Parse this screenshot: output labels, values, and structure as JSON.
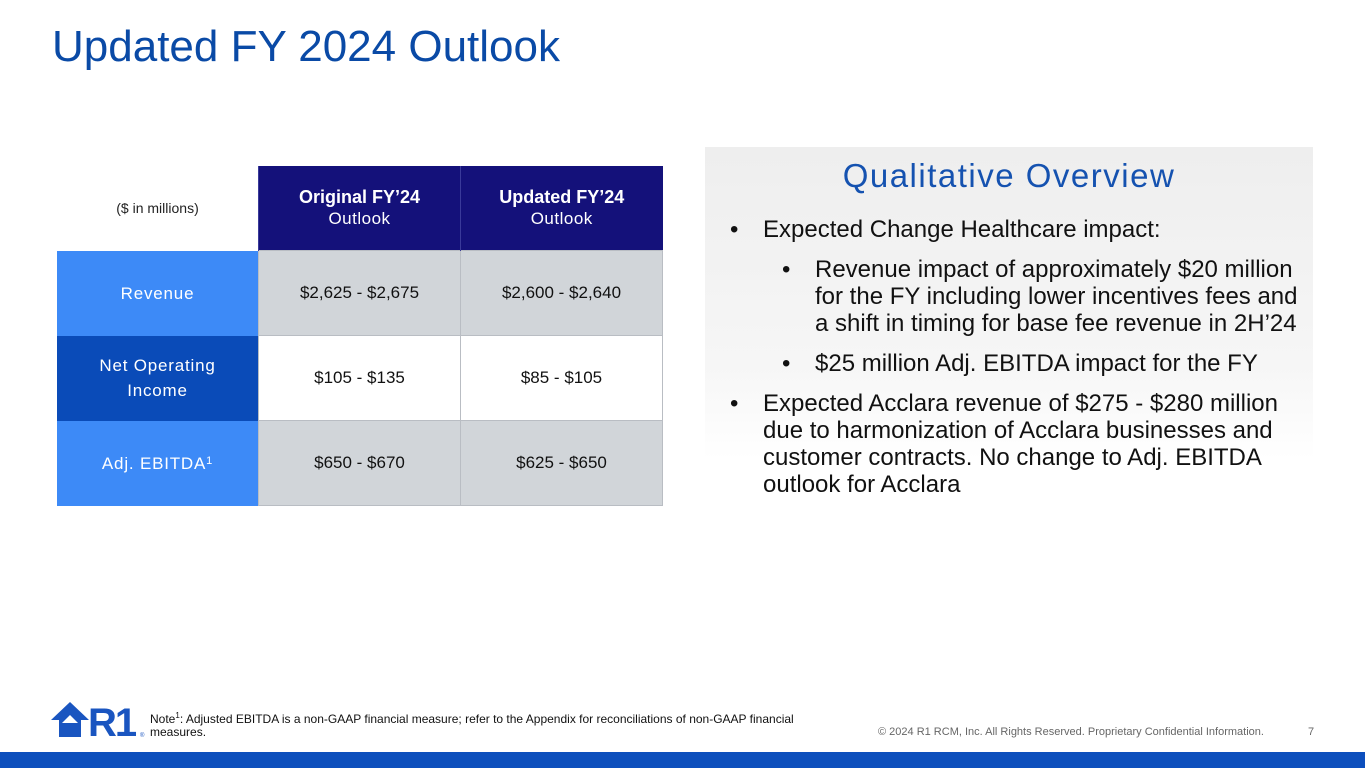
{
  "slide": {
    "title": "Updated FY 2024 Outlook"
  },
  "table": {
    "corner_label": "($ in millions)",
    "columns": [
      {
        "bold": "Original FY’24",
        "light": "Outlook"
      },
      {
        "bold": "Updated FY’24",
        "light": "Outlook"
      }
    ],
    "rows": [
      {
        "label": "Revenue",
        "original": "$2,625 - $2,675",
        "updated": "$2,600 - $2,640"
      },
      {
        "label_line1": "Net Operating",
        "label_line2": "Income",
        "original": "$105 - $135",
        "updated": "$85 - $105"
      },
      {
        "label": "Adj. EBITDA",
        "label_sup": "1",
        "original": "$650 - $670",
        "updated": "$625 - $650"
      }
    ]
  },
  "qualitative": {
    "title": "Qualitative Overview",
    "bullets": [
      "Expected Change Healthcare impact:",
      "Revenue impact of approximately $20 million for the FY including lower incentives fees and a shift in timing for base fee revenue in 2H’24",
      "$25 million Adj. EBITDA impact for the FY",
      "Expected Acclara revenue of $275 - $280 million due to harmonization of Acclara businesses and customer contracts.  No change to Adj. EBITDA outlook for Acclara"
    ],
    "bullet_glyph": "•"
  },
  "footer": {
    "note_prefix": "Note",
    "note_sup": "1",
    "note_text": ": Adjusted EBITDA is a non-GAAP financial measure; refer to the Appendix for reconciliations of non-GAAP financial measures.",
    "copyright": "© 2024 R1 RCM, Inc. All Rights Reserved. Proprietary Confidential Information.",
    "page_number": "7",
    "logo_text": "R1",
    "logo_mark": "®"
  },
  "colors": {
    "title_blue": "#0a4aa6",
    "header_navy": "#14117a",
    "label_light_blue": "#3d8af7",
    "label_dark_blue": "#0a4bb8",
    "footer_bar": "#0d4fbd"
  }
}
